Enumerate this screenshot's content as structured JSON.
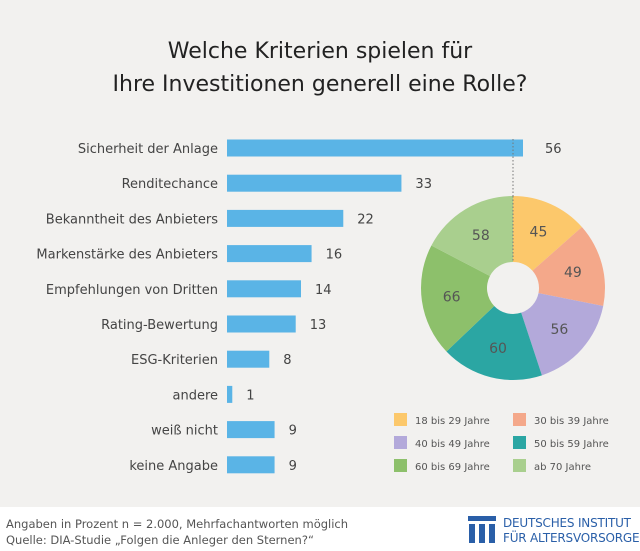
{
  "chart_data": [
    {
      "type": "bar",
      "orientation": "horizontal",
      "title": "Welche Kriterien spielen für Ihre Investitionen generell eine Rolle?",
      "title_lines": [
        "Welche Kriterien spielen für",
        "Ihre Investitionen generell eine Rolle?"
      ],
      "categories": [
        "Sicherheit der Anlage",
        "Renditechance",
        "Bekanntheit des Anbieters",
        "Markenstärke des Anbieters",
        "Empfehlungen von Dritten",
        "Rating-Bewertung",
        "ESG-Kriterien",
        "andere",
        "weiß nicht",
        "keine Angabe"
      ],
      "values": [
        56,
        33,
        22,
        16,
        14,
        13,
        8,
        1,
        9,
        9
      ],
      "color": "#5ab4e6",
      "xlim": [
        0,
        56
      ],
      "grid": false
    },
    {
      "type": "pie",
      "donut": true,
      "categories": [
        "18 bis 29 Jahre",
        "30 bis 39 Jahre",
        "40 bis 49 Jahre",
        "50 bis 59 Jahre",
        "60 bis 69 Jahre",
        "ab 70 Jahre"
      ],
      "values": [
        45,
        49,
        56,
        60,
        66,
        58
      ],
      "colors": [
        "#fcc86b",
        "#f4a88a",
        "#b3a9da",
        "#2ba6a3",
        "#8dc06b",
        "#a9cf8e"
      ],
      "legend_position": "bottom"
    }
  ],
  "footer": {
    "note": "Angaben in Prozent  n = 2.000, Mehrfachantworten möglich",
    "source": "Quelle: DIA-Studie „Folgen die Anleger den Sternen?“"
  },
  "logo": {
    "line1": "DEUTSCHES INSTITUT",
    "line2": "FÜR ALTERSVORSORGE",
    "color": "#2a5fa8"
  }
}
